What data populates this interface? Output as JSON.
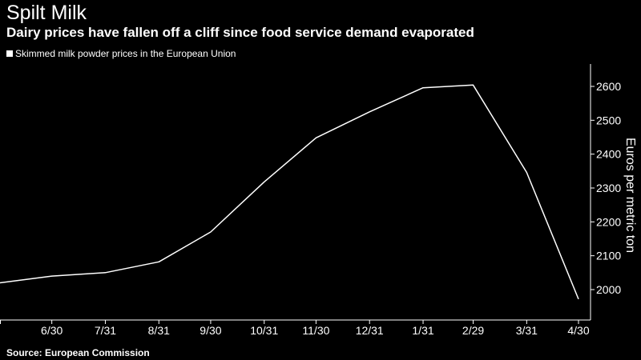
{
  "header": {
    "title": "Spilt Milk",
    "subtitle": "Dairy prices have fallen off a cliff since food service demand evaporated"
  },
  "footer": {
    "source": "Source: European Commission"
  },
  "colors": {
    "background": "#000000",
    "line": "#ffffff",
    "text": "#ffffff"
  },
  "chart_data": {
    "type": "line",
    "title": "",
    "xlabel": "",
    "ylabel": "Euros per metric ton",
    "ylim": [
      1950,
      2650
    ],
    "y_axis_side": "right",
    "grid": false,
    "legend_placement": "top-left",
    "x_tick_labels": [
      "6/30",
      "7/31",
      "8/31",
      "9/30",
      "10/31",
      "11/30",
      "12/31",
      "1/31",
      "2/29",
      "3/31",
      "4/30"
    ],
    "y_ticks": [
      2000,
      2100,
      2200,
      2300,
      2400,
      2500,
      2600
    ],
    "series": [
      {
        "name": "Skimmed milk powder prices in the European Union",
        "x": [
          "2019-05-31",
          "2019-06-30",
          "2019-07-31",
          "2019-08-31",
          "2019-09-30",
          "2019-10-31",
          "2019-11-30",
          "2019-12-31",
          "2020-01-31",
          "2020-02-29",
          "2020-03-31",
          "2020-04-30"
        ],
        "values": [
          2020,
          2040,
          2050,
          2082,
          2170,
          2318,
          2448,
          2525,
          2596,
          2604,
          2346,
          1972
        ]
      }
    ]
  }
}
